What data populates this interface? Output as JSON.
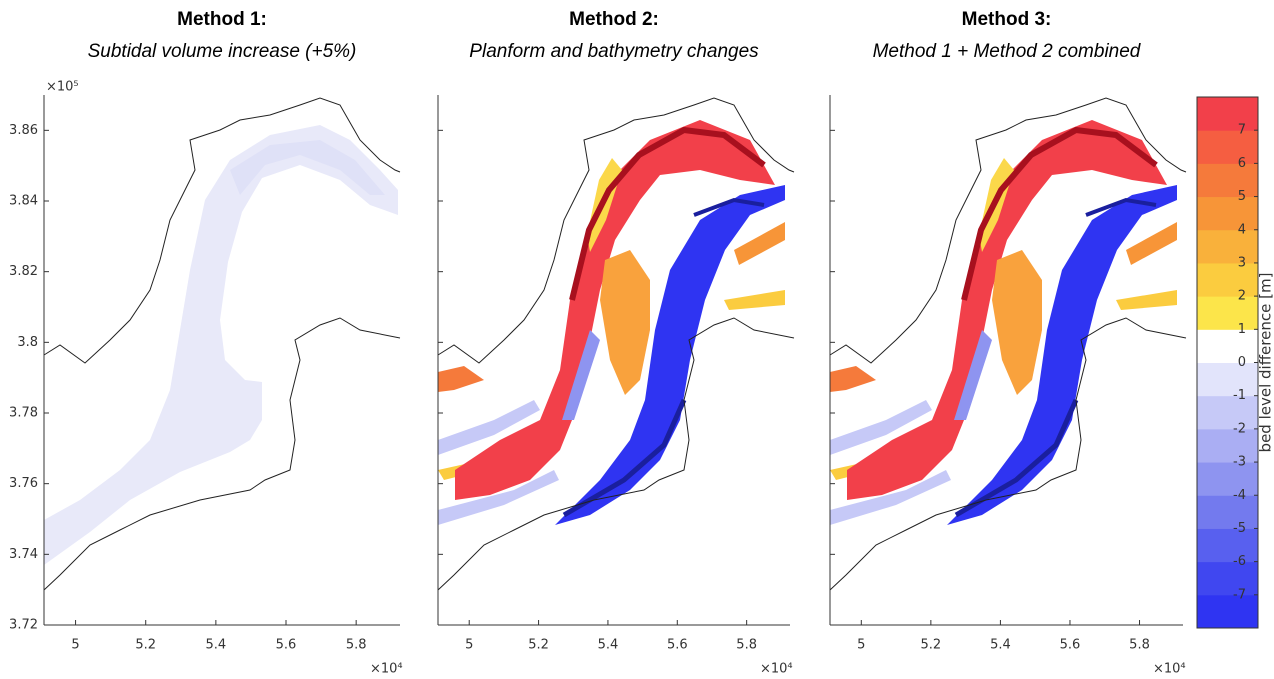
{
  "chart_data": [
    {
      "type": "map",
      "title": "Method 1:",
      "subtitle": "Subtidal volume increase (+5%)",
      "xlim": [
        49100,
        59250
      ],
      "xticks": [
        {
          "value": 50000,
          "label": "5"
        },
        {
          "value": 52000,
          "label": "5.2"
        },
        {
          "value": 54000,
          "label": "5.4"
        },
        {
          "value": 56000,
          "label": "5.6"
        },
        {
          "value": 58000,
          "label": "5.8"
        }
      ],
      "x_multiplier": "×10⁴",
      "ylim": [
        372000,
        387000
      ],
      "yticks": [
        {
          "value": 372000,
          "label": "3.72"
        },
        {
          "value": 374000,
          "label": "3.74"
        },
        {
          "value": 376000,
          "label": "3.76"
        },
        {
          "value": 378000,
          "label": "3.78"
        },
        {
          "value": 380000,
          "label": "3.8"
        },
        {
          "value": 382000,
          "label": "3.82"
        },
        {
          "value": 384000,
          "label": "3.84"
        },
        {
          "value": 386000,
          "label": "3.86"
        }
      ],
      "y_multiplier": "×10⁵",
      "show_ytick_labels": true
    },
    {
      "type": "map",
      "title": "Method 2:",
      "subtitle": "Planform and bathymetry changes",
      "xlim": [
        49100,
        59250
      ],
      "xticks": [
        {
          "value": 50000,
          "label": "5"
        },
        {
          "value": 52000,
          "label": "5.2"
        },
        {
          "value": 54000,
          "label": "5.4"
        },
        {
          "value": 56000,
          "label": "5.6"
        },
        {
          "value": 58000,
          "label": "5.8"
        }
      ],
      "x_multiplier": "×10⁴",
      "ylim": [
        372000,
        387000
      ],
      "yticks": [
        372000,
        374000,
        376000,
        378000,
        380000,
        382000,
        384000,
        386000
      ],
      "show_ytick_labels": false
    },
    {
      "type": "map",
      "title": "Method 3:",
      "subtitle": "Method 1 + Method 2 combined",
      "xlim": [
        49100,
        59250
      ],
      "xticks": [
        {
          "value": 50000,
          "label": "5"
        },
        {
          "value": 52000,
          "label": "5.2"
        },
        {
          "value": 54000,
          "label": "5.4"
        },
        {
          "value": 56000,
          "label": "5.6"
        },
        {
          "value": 58000,
          "label": "5.8"
        }
      ],
      "x_multiplier": "×10⁴",
      "ylim": [
        372000,
        387000
      ],
      "yticks": [
        372000,
        374000,
        376000,
        378000,
        380000,
        382000,
        384000,
        386000
      ],
      "show_ytick_labels": false,
      "colorbar": {
        "label": "bed level difference [m]",
        "clim": [
          -8,
          8
        ],
        "ticks": [
          -7,
          -6,
          -5,
          -4,
          -3,
          -2,
          -1,
          0,
          1,
          2,
          3,
          4,
          5,
          6,
          7
        ],
        "colors": [
          "#2f34f2",
          "#4047f0",
          "#5860ef",
          "#737aee",
          "#8e94f0",
          "#aaaef3",
          "#c6c9f7",
          "#e2e4fb",
          "#ffffff",
          "#fce54a",
          "#fbcc3f",
          "#f9b13b",
          "#f79538",
          "#f57a3b",
          "#f55e41",
          "#f2404a"
        ]
      }
    }
  ]
}
